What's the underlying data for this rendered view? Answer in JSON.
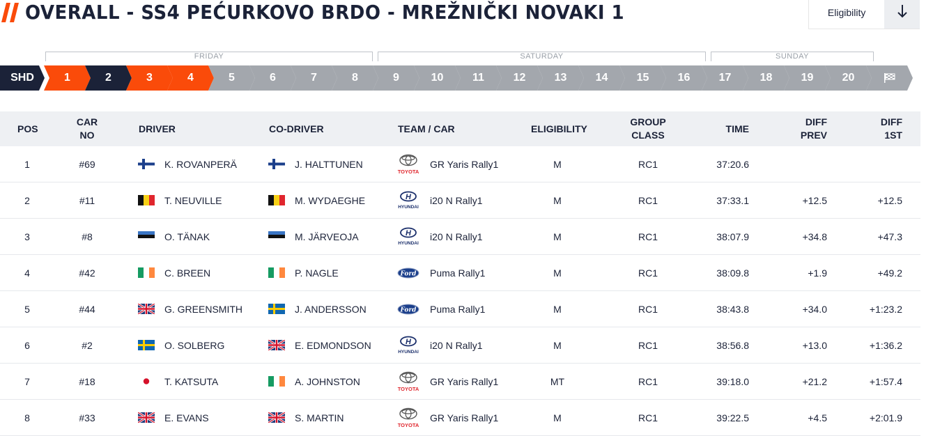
{
  "header": {
    "title": "OVERALL - SS4 PEĆURKOVO BRDO - MREŽNIČKI NOVAKI 1",
    "eligibility_label": "Eligibility",
    "accent_color": "#fa4b0a",
    "navy_color": "#1b2238"
  },
  "days": [
    {
      "label": "FRIDAY"
    },
    {
      "label": "SATURDAY"
    },
    {
      "label": "SUNDAY"
    }
  ],
  "stages": [
    {
      "label": "SHD",
      "state": "navy"
    },
    {
      "label": "1",
      "state": "orange"
    },
    {
      "label": "2",
      "state": "navy"
    },
    {
      "label": "3",
      "state": "orange"
    },
    {
      "label": "4",
      "state": "orange"
    },
    {
      "label": "5",
      "state": "grey"
    },
    {
      "label": "6",
      "state": "grey"
    },
    {
      "label": "7",
      "state": "grey"
    },
    {
      "label": "8",
      "state": "grey"
    },
    {
      "label": "9",
      "state": "grey"
    },
    {
      "label": "10",
      "state": "grey"
    },
    {
      "label": "11",
      "state": "grey"
    },
    {
      "label": "12",
      "state": "grey"
    },
    {
      "label": "13",
      "state": "grey"
    },
    {
      "label": "14",
      "state": "grey"
    },
    {
      "label": "15",
      "state": "grey"
    },
    {
      "label": "16",
      "state": "grey"
    },
    {
      "label": "17",
      "state": "grey"
    },
    {
      "label": "18",
      "state": "grey"
    },
    {
      "label": "19",
      "state": "grey"
    },
    {
      "label": "20",
      "state": "grey"
    },
    {
      "label": "",
      "state": "grey",
      "icon": "checkered-flag-icon"
    }
  ],
  "columns": {
    "pos": "POS",
    "car_no_1": "CAR",
    "car_no_2": "NO",
    "driver": "DRIVER",
    "co_driver": "CO-DRIVER",
    "team_car": "TEAM / CAR",
    "eligibility": "ELIGIBILITY",
    "group_1": "GROUP",
    "group_2": "CLASS",
    "time": "TIME",
    "diff_prev_1": "DIFF",
    "diff_prev_2": "PREV",
    "diff_1st_1": "DIFF",
    "diff_1st_2": "1ST"
  },
  "rows": [
    {
      "pos": "1",
      "car": "#69",
      "driver": "K. ROVANPERÄ",
      "driver_flag": "fi",
      "codriver": "J. HALTTUNEN",
      "codriver_flag": "fi",
      "brand": "toyota",
      "brand_text": "TOYOTA",
      "car_model": "GR Yaris Rally1",
      "elig": "M",
      "class": "RC1",
      "time": "37:20.6",
      "diff_prev": "",
      "diff_1st": ""
    },
    {
      "pos": "2",
      "car": "#11",
      "driver": "T. NEUVILLE",
      "driver_flag": "be",
      "codriver": "M. WYDAEGHE",
      "codriver_flag": "be",
      "brand": "hyundai",
      "brand_text": "HYUNDAI",
      "car_model": "i20 N Rally1",
      "elig": "M",
      "class": "RC1",
      "time": "37:33.1",
      "diff_prev": "+12.5",
      "diff_1st": "+12.5"
    },
    {
      "pos": "3",
      "car": "#8",
      "driver": "O. TÄNAK",
      "driver_flag": "ee",
      "codriver": "M. JÄRVEOJA",
      "codriver_flag": "ee",
      "brand": "hyundai",
      "brand_text": "HYUNDAI",
      "car_model": "i20 N Rally1",
      "elig": "M",
      "class": "RC1",
      "time": "38:07.9",
      "diff_prev": "+34.8",
      "diff_1st": "+47.3"
    },
    {
      "pos": "4",
      "car": "#42",
      "driver": "C. BREEN",
      "driver_flag": "ie",
      "codriver": "P. NAGLE",
      "codriver_flag": "ie",
      "brand": "ford",
      "brand_text": "Ford",
      "car_model": "Puma Rally1",
      "elig": "M",
      "class": "RC1",
      "time": "38:09.8",
      "diff_prev": "+1.9",
      "diff_1st": "+49.2"
    },
    {
      "pos": "5",
      "car": "#44",
      "driver": "G. GREENSMITH",
      "driver_flag": "gb",
      "codriver": "J. ANDERSSON",
      "codriver_flag": "se",
      "brand": "ford",
      "brand_text": "Ford",
      "car_model": "Puma Rally1",
      "elig": "M",
      "class": "RC1",
      "time": "38:43.8",
      "diff_prev": "+34.0",
      "diff_1st": "+1:23.2"
    },
    {
      "pos": "6",
      "car": "#2",
      "driver": "O. SOLBERG",
      "driver_flag": "se",
      "codriver": "E. EDMONDSON",
      "codriver_flag": "gb",
      "brand": "hyundai",
      "brand_text": "HYUNDAI",
      "car_model": "i20 N Rally1",
      "elig": "M",
      "class": "RC1",
      "time": "38:56.8",
      "diff_prev": "+13.0",
      "diff_1st": "+1:36.2"
    },
    {
      "pos": "7",
      "car": "#18",
      "driver": "T. KATSUTA",
      "driver_flag": "jp",
      "codriver": "A. JOHNSTON",
      "codriver_flag": "ie",
      "brand": "toyota",
      "brand_text": "TOYOTA",
      "car_model": "GR Yaris Rally1",
      "elig": "MT",
      "class": "RC1",
      "time": "39:18.0",
      "diff_prev": "+21.2",
      "diff_1st": "+1:57.4"
    },
    {
      "pos": "8",
      "car": "#33",
      "driver": "E. EVANS",
      "driver_flag": "gb",
      "codriver": "S. MARTIN",
      "codriver_flag": "gb",
      "brand": "toyota",
      "brand_text": "TOYOTA",
      "car_model": "GR Yaris Rally1",
      "elig": "M",
      "class": "RC1",
      "time": "39:22.5",
      "diff_prev": "+4.5",
      "diff_1st": "+2:01.9"
    }
  ]
}
